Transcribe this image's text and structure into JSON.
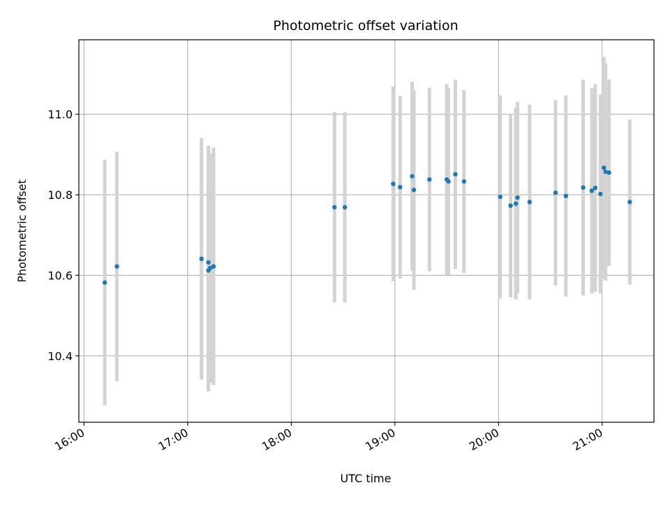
{
  "chart_data": {
    "type": "scatter",
    "title": "Photometric offset variation",
    "xlabel": "UTC time",
    "ylabel": "Photometric offset",
    "x_axis": {
      "kind": "time",
      "range": [
        "15:57",
        "21:30"
      ],
      "ticks": [
        "16:00",
        "17:00",
        "18:00",
        "19:00",
        "20:00",
        "21:00"
      ]
    },
    "y_axis": {
      "range": [
        10.235,
        11.185
      ],
      "ticks": [
        "10.4",
        "10.6",
        "10.8",
        "11.0"
      ]
    },
    "grid": true,
    "colors": {
      "points": "#1f77b4",
      "errorbars": "#d3d3d3",
      "grid": "#b0b0b0"
    },
    "series": [
      {
        "points": [
          {
            "t": "16:12",
            "y": 10.582,
            "err": 0.305
          },
          {
            "t": "16:19",
            "y": 10.622,
            "err": 0.285
          },
          {
            "t": "17:08",
            "y": 10.641,
            "err": 0.3
          },
          {
            "t": "17:12",
            "y": 10.632,
            "err": 0.29
          },
          {
            "t": "17:12",
            "y": 10.612,
            "err": 0.3
          },
          {
            "t": "17:13",
            "y": 10.618,
            "err": 0.285
          },
          {
            "t": "17:15",
            "y": 10.622,
            "err": 0.295
          },
          {
            "t": "18:25",
            "y": 10.769,
            "err": 0.237
          },
          {
            "t": "18:31",
            "y": 10.769,
            "err": 0.237
          },
          {
            "t": "18:59",
            "y": 10.827,
            "err": 0.242
          },
          {
            "t": "19:03",
            "y": 10.819,
            "err": 0.227
          },
          {
            "t": "19:10",
            "y": 10.846,
            "err": 0.235
          },
          {
            "t": "19:11",
            "y": 10.812,
            "err": 0.248
          },
          {
            "t": "19:20",
            "y": 10.838,
            "err": 0.228
          },
          {
            "t": "19:30",
            "y": 10.838,
            "err": 0.237
          },
          {
            "t": "19:31",
            "y": 10.833,
            "err": 0.232
          },
          {
            "t": "19:35",
            "y": 10.851,
            "err": 0.235
          },
          {
            "t": "19:40",
            "y": 10.833,
            "err": 0.227
          },
          {
            "t": "20:01",
            "y": 10.795,
            "err": 0.252
          },
          {
            "t": "20:07",
            "y": 10.773,
            "err": 0.228
          },
          {
            "t": "20:10",
            "y": 10.778,
            "err": 0.238
          },
          {
            "t": "20:11",
            "y": 10.793,
            "err": 0.238
          },
          {
            "t": "20:18",
            "y": 10.782,
            "err": 0.242
          },
          {
            "t": "20:33",
            "y": 10.805,
            "err": 0.23
          },
          {
            "t": "20:39",
            "y": 10.797,
            "err": 0.25
          },
          {
            "t": "20:49",
            "y": 10.818,
            "err": 0.268
          },
          {
            "t": "20:54",
            "y": 10.81,
            "err": 0.255
          },
          {
            "t": "20:56",
            "y": 10.817,
            "err": 0.258
          },
          {
            "t": "20:59",
            "y": 10.802,
            "err": 0.247
          },
          {
            "t": "21:01",
            "y": 10.867,
            "err": 0.275
          },
          {
            "t": "21:02",
            "y": 10.857,
            "err": 0.27
          },
          {
            "t": "21:04",
            "y": 10.855,
            "err": 0.232
          },
          {
            "t": "21:16",
            "y": 10.782,
            "err": 0.205
          }
        ]
      }
    ]
  }
}
